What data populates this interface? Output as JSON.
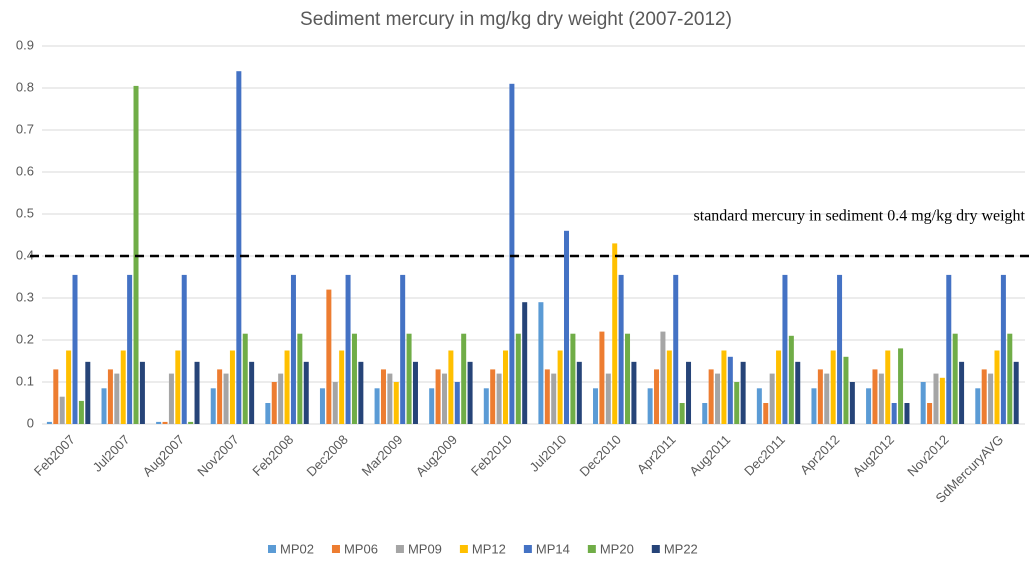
{
  "chart_data": {
    "type": "bar",
    "title": "Sediment mercury in mg/kg dry weight  (2007-2012)",
    "categories": [
      "Feb2007",
      "Jul2007",
      "Aug2007",
      "Nov2007",
      "Feb2008",
      "Dec2008",
      "Mar2009",
      "Aug2009",
      "Feb2010",
      "Jul2010",
      "Dec2010",
      "Apr2011",
      "Aug2011",
      "Dec2011",
      "Apr2012",
      "Aug2012",
      "Nov2012",
      "SdMercuryAVG"
    ],
    "series": [
      {
        "name": "MP02",
        "color": "#5b9bd5",
        "values": [
          0.005,
          0.085,
          0.005,
          0.085,
          0.05,
          0.085,
          0.085,
          0.085,
          0.085,
          0.29,
          0.085,
          0.085,
          0.05,
          0.085,
          0.085,
          0.085,
          0.1,
          0.085
        ]
      },
      {
        "name": "MP06",
        "color": "#ed7d31",
        "values": [
          0.13,
          0.13,
          0.005,
          0.13,
          0.1,
          0.32,
          0.13,
          0.13,
          0.13,
          0.13,
          0.22,
          0.13,
          0.13,
          0.05,
          0.13,
          0.13,
          0.05,
          0.13
        ]
      },
      {
        "name": "MP09",
        "color": "#a5a5a5",
        "values": [
          0.065,
          0.12,
          0.12,
          0.12,
          0.12,
          0.1,
          0.12,
          0.12,
          0.12,
          0.12,
          0.12,
          0.22,
          0.12,
          0.12,
          0.12,
          0.12,
          0.12,
          0.12
        ]
      },
      {
        "name": "MP12",
        "color": "#ffc000",
        "values": [
          0.175,
          0.175,
          0.175,
          0.175,
          0.175,
          0.175,
          0.1,
          0.175,
          0.175,
          0.175,
          0.43,
          0.175,
          0.175,
          0.175,
          0.175,
          0.175,
          0.11,
          0.175
        ]
      },
      {
        "name": "MP14",
        "color": "#4472c4",
        "values": [
          0.355,
          0.355,
          0.355,
          0.84,
          0.355,
          0.355,
          0.355,
          0.1,
          0.81,
          0.46,
          0.355,
          0.355,
          0.16,
          0.355,
          0.355,
          0.05,
          0.355,
          0.355
        ]
      },
      {
        "name": "MP20",
        "color": "#70ad47",
        "values": [
          0.055,
          0.805,
          0.005,
          0.215,
          0.215,
          0.215,
          0.215,
          0.215,
          0.215,
          0.215,
          0.215,
          0.05,
          0.1,
          0.21,
          0.16,
          0.18,
          0.215,
          0.215
        ]
      },
      {
        "name": "MP22",
        "color": "#264478",
        "values": [
          0.148,
          0.148,
          0.148,
          0.148,
          0.148,
          0.148,
          0.148,
          0.148,
          0.29,
          0.148,
          0.148,
          0.148,
          0.148,
          0.148,
          0.1,
          0.05,
          0.148,
          0.148
        ]
      }
    ],
    "reference_line": {
      "value": 0.4,
      "label": "standard mercury in sediment 0.4 mg/kg dry weight"
    },
    "ylim": [
      0,
      0.9
    ],
    "yticks": [
      0,
      0.1,
      0.2,
      0.3,
      0.4,
      0.5,
      0.6,
      0.7,
      0.8,
      0.9
    ],
    "grid": true,
    "legend": "bottom"
  }
}
